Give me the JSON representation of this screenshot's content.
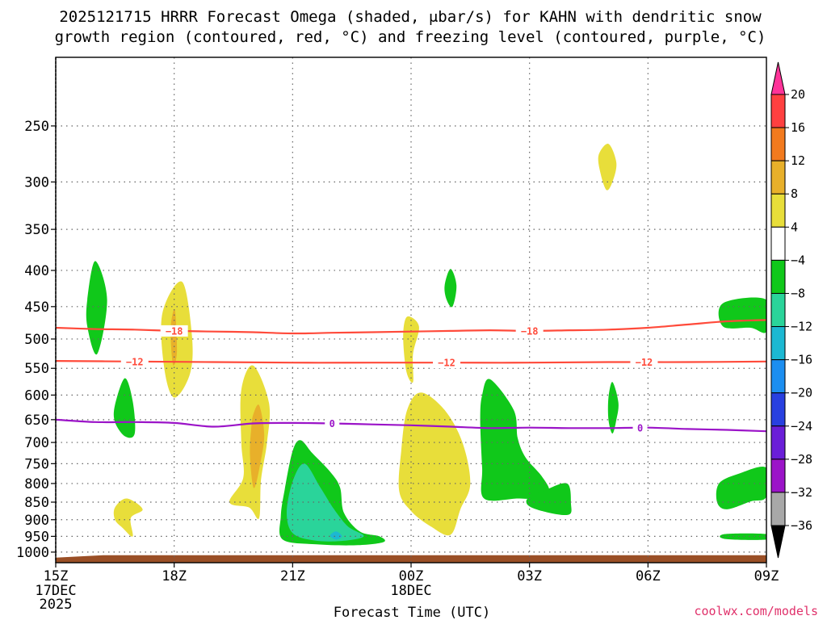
{
  "header": {
    "title_line1": "2025121715 HRRR Forecast Omega (shaded, μbar/s) for KAHN with dendritic snow",
    "title_line2": "growth region (contoured, red, °C) and freezing level (contoured, purple, °C)"
  },
  "footer": {
    "credit": "coolwx.com/models"
  },
  "chart_data": {
    "type": "heatmap",
    "title": "2025121715 HRRR Forecast Omega (shaded, μbar/s) for KAHN with dendritic snow growth region (contoured, red, °C) and freezing level (contoured, purple, °C)",
    "xlabel": "Forecast Time (UTC)",
    "ylabel": "",
    "x_unit": "hours since 2025-12-17 15Z",
    "xlim": [
      0,
      18
    ],
    "x_ticks": [
      {
        "x": 0,
        "label": "15Z",
        "sub": [
          "17DEC",
          "2025"
        ]
      },
      {
        "x": 3,
        "label": "18Z",
        "sub": []
      },
      {
        "x": 6,
        "label": "21Z",
        "sub": []
      },
      {
        "x": 9,
        "label": "00Z",
        "sub": [
          "18DEC"
        ]
      },
      {
        "x": 12,
        "label": "03Z",
        "sub": []
      },
      {
        "x": 15,
        "label": "06Z",
        "sub": []
      },
      {
        "x": 18,
        "label": "09Z",
        "sub": []
      }
    ],
    "y_axis": {
      "scale": "log",
      "top_hpa": 200,
      "bottom_hpa": 1035,
      "ticks": [
        250,
        300,
        350,
        400,
        450,
        500,
        550,
        600,
        650,
        700,
        750,
        800,
        850,
        900,
        950,
        1000
      ]
    },
    "ground": {
      "pressure_hpa": 1010,
      "color": "#9a4f26"
    },
    "colorbar": {
      "tick_labels": [
        "20",
        "16",
        "12",
        "8",
        "4",
        "-4",
        "-8",
        "-12",
        "-16",
        "-20",
        "-24",
        "-28",
        "-32",
        "-36"
      ],
      "colors": [
        "#ff3399",
        "#ff4040",
        "#f27a1e",
        "#e8b02a",
        "#e8de3a",
        "#ffffff",
        "#10c81a",
        "#2ad49a",
        "#1cb8d2",
        "#1c8ef0",
        "#2840e0",
        "#6a1ed8",
        "#9b14c8",
        "#a8a8a8",
        "#000000"
      ]
    },
    "series": [
      {
        "name": "Dendritic growth -18°C",
        "color": "#ff4a3a",
        "label": "-18",
        "x": [
          0,
          1,
          2,
          3,
          4,
          5,
          6,
          7,
          8,
          9,
          10,
          11,
          12,
          13,
          14,
          15,
          16,
          17,
          18
        ],
        "p_hpa": [
          482,
          484,
          485,
          487,
          488,
          489,
          491,
          490,
          489,
          488,
          487,
          486,
          487,
          486,
          485,
          482,
          477,
          472,
          470
        ],
        "label_x": [
          3,
          12.0
        ]
      },
      {
        "name": "Dendritic growth -12°C",
        "color": "#ff4a3a",
        "label": "-12",
        "x": [
          0,
          2,
          4,
          6,
          8,
          10,
          12,
          14,
          16,
          18
        ],
        "p_hpa": [
          537,
          538,
          539,
          540,
          540,
          540,
          540,
          539,
          539,
          538
        ],
        "label_x": [
          2,
          9.9,
          14.9
        ]
      },
      {
        "name": "Freezing level 0°C",
        "color": "#9b14c8",
        "label": "0",
        "x": [
          0,
          1,
          2,
          3,
          4,
          5,
          6,
          7,
          8,
          9,
          10,
          11,
          12,
          13,
          14,
          15,
          16,
          17,
          18
        ],
        "p_hpa": [
          650,
          655,
          655,
          657,
          665,
          658,
          657,
          658,
          660,
          662,
          665,
          668,
          667,
          668,
          668,
          667,
          670,
          672,
          675
        ],
        "label_x": [
          7.0,
          14.8
        ]
      }
    ],
    "omega_regions": [
      {
        "name": "ascent-16h-mid",
        "color": "#10c81a",
        "pts": [
          [
            0.8,
            440
          ],
          [
            1.0,
            388
          ],
          [
            1.3,
            440
          ],
          [
            1.05,
            525
          ],
          [
            0.8,
            480
          ]
        ]
      },
      {
        "name": "ascent-17h-mid",
        "color": "#10c81a",
        "pts": [
          [
            1.5,
            620
          ],
          [
            1.75,
            568
          ],
          [
            1.95,
            612
          ],
          [
            2.0,
            680
          ],
          [
            1.75,
            686
          ],
          [
            1.5,
            655
          ]
        ]
      },
      {
        "name": "descent-18h-upper",
        "color": "#e8de3a",
        "pts": [
          [
            2.7,
            460
          ],
          [
            3.2,
            415
          ],
          [
            3.45,
            495
          ],
          [
            3.4,
            560
          ],
          [
            3.0,
            605
          ],
          [
            2.75,
            550
          ]
        ]
      },
      {
        "name": "descent-18h-core",
        "color": "#e8b02a",
        "pts": [
          [
            2.92,
            475
          ],
          [
            3.02,
            455
          ],
          [
            3.07,
            520
          ],
          [
            2.98,
            545
          ],
          [
            2.92,
            510
          ]
        ]
      },
      {
        "name": "descent-17h-low",
        "color": "#e8de3a",
        "pts": [
          [
            1.5,
            865
          ],
          [
            1.8,
            840
          ],
          [
            2.2,
            870
          ],
          [
            1.9,
            895
          ],
          [
            1.95,
            950
          ],
          [
            1.7,
            925
          ],
          [
            1.5,
            900
          ]
        ]
      },
      {
        "name": "descent-20h-col",
        "color": "#e8de3a",
        "pts": [
          [
            4.7,
            590
          ],
          [
            5.0,
            545
          ],
          [
            5.4,
            615
          ],
          [
            5.35,
            700
          ],
          [
            5.2,
            790
          ],
          [
            5.15,
            895
          ],
          [
            4.9,
            865
          ],
          [
            4.4,
            850
          ],
          [
            4.75,
            785
          ],
          [
            4.7,
            700
          ]
        ]
      },
      {
        "name": "descent-20h-core",
        "color": "#e8b02a",
        "pts": [
          [
            5.0,
            640
          ],
          [
            5.15,
            620
          ],
          [
            5.28,
            680
          ],
          [
            5.2,
            740
          ],
          [
            5.02,
            812
          ],
          [
            4.92,
            730
          ],
          [
            4.95,
            670
          ]
        ]
      },
      {
        "name": "ascent-21h-low",
        "color": "#10c81a",
        "pts": [
          [
            6.0,
            720
          ],
          [
            6.2,
            695
          ],
          [
            6.5,
            725
          ],
          [
            6.95,
            770
          ],
          [
            7.2,
            810
          ],
          [
            7.3,
            880
          ],
          [
            7.7,
            935
          ],
          [
            8.2,
            950
          ],
          [
            8.3,
            968
          ],
          [
            7.6,
            978
          ],
          [
            6.6,
            975
          ],
          [
            5.75,
            960
          ],
          [
            5.7,
            890
          ],
          [
            5.8,
            815
          ]
        ]
      },
      {
        "name": "ascent-21h-strong",
        "color": "#2ad49a",
        "pts": [
          [
            6.0,
            795
          ],
          [
            6.3,
            750
          ],
          [
            6.7,
            810
          ],
          [
            7.05,
            870
          ],
          [
            7.4,
            920
          ],
          [
            7.8,
            950
          ],
          [
            7.2,
            965
          ],
          [
            6.5,
            962
          ],
          [
            6.0,
            940
          ],
          [
            5.85,
            880
          ]
        ]
      },
      {
        "name": "ascent-21h-speck",
        "color": "#1cb8d2",
        "pts": [
          [
            6.95,
            948
          ],
          [
            7.1,
            935
          ],
          [
            7.25,
            950
          ],
          [
            7.1,
            960
          ]
        ]
      },
      {
        "name": "descent-23h-narrow",
        "color": "#e8de3a",
        "pts": [
          [
            8.8,
            495
          ],
          [
            8.9,
            465
          ],
          [
            9.2,
            480
          ],
          [
            9.05,
            525
          ],
          [
            9.05,
            575
          ],
          [
            8.88,
            555
          ]
        ]
      },
      {
        "name": "descent-00h-col",
        "color": "#e8de3a",
        "pts": [
          [
            8.9,
            630
          ],
          [
            9.25,
            595
          ],
          [
            9.85,
            630
          ],
          [
            10.3,
            700
          ],
          [
            10.5,
            800
          ],
          [
            10.25,
            870
          ],
          [
            10.0,
            945
          ],
          [
            9.5,
            920
          ],
          [
            9.0,
            875
          ],
          [
            8.7,
            820
          ],
          [
            8.75,
            720
          ]
        ]
      },
      {
        "name": "ascent-00h-mid",
        "color": "#10c81a",
        "pts": [
          [
            9.85,
            420
          ],
          [
            10.0,
            398
          ],
          [
            10.15,
            420
          ],
          [
            10.05,
            450
          ],
          [
            9.9,
            440
          ]
        ]
      },
      {
        "name": "ascent-01h-col",
        "color": "#10c81a",
        "pts": [
          [
            10.8,
            600
          ],
          [
            11.0,
            570
          ],
          [
            11.6,
            630
          ],
          [
            11.7,
            690
          ],
          [
            11.9,
            735
          ],
          [
            12.3,
            780
          ],
          [
            12.5,
            820
          ],
          [
            12.2,
            840
          ],
          [
            11.7,
            840
          ],
          [
            10.85,
            840
          ],
          [
            10.8,
            760
          ],
          [
            10.75,
            650
          ]
        ]
      },
      {
        "name": "ascent-02h-low",
        "color": "#10c81a",
        "pts": [
          [
            11.95,
            840
          ],
          [
            12.35,
            820
          ],
          [
            12.95,
            800
          ],
          [
            13.05,
            855
          ],
          [
            13.0,
            885
          ],
          [
            12.5,
            880
          ],
          [
            12.0,
            862
          ]
        ]
      },
      {
        "name": "ascent-04h-narrow",
        "color": "#10c81a",
        "pts": [
          [
            14.0,
            605
          ],
          [
            14.1,
            575
          ],
          [
            14.25,
            615
          ],
          [
            14.2,
            650
          ],
          [
            14.1,
            680
          ],
          [
            14.0,
            650
          ]
        ]
      },
      {
        "name": "descent-04h-upper",
        "color": "#e8de3a",
        "pts": [
          [
            13.75,
            275
          ],
          [
            14.0,
            265
          ],
          [
            14.2,
            282
          ],
          [
            14.1,
            300
          ],
          [
            13.95,
            308
          ],
          [
            13.8,
            292
          ]
        ]
      },
      {
        "name": "ascent-08h-mid",
        "color": "#10c81a",
        "pts": [
          [
            16.9,
            445
          ],
          [
            18.0,
            440
          ],
          [
            18.0,
            488
          ],
          [
            17.6,
            482
          ],
          [
            16.9,
            480
          ]
        ]
      },
      {
        "name": "ascent-08h-low",
        "color": "#10c81a",
        "pts": [
          [
            16.8,
            800
          ],
          [
            17.3,
            775
          ],
          [
            18.0,
            760
          ],
          [
            18.0,
            835
          ],
          [
            17.6,
            848
          ],
          [
            17.0,
            870
          ],
          [
            16.75,
            850
          ]
        ]
      },
      {
        "name": "ascent-08h-sfc",
        "color": "#10c81a",
        "pts": [
          [
            16.95,
            943
          ],
          [
            18.0,
            943
          ],
          [
            18.0,
            960
          ],
          [
            16.95,
            958
          ]
        ]
      }
    ]
  }
}
